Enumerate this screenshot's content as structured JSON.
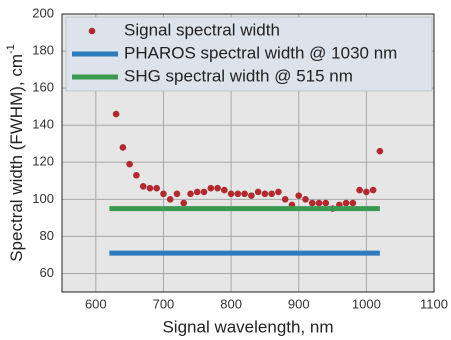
{
  "chart_data": {
    "type": "scatter",
    "x_label": "Signal wavelength, nm",
    "y_label": "Spectral width (FWHM), cm",
    "y_label_sup": "-1",
    "xlim": [
      550,
      1100
    ],
    "xticks": [
      600,
      700,
      800,
      900,
      1000,
      1100
    ],
    "ylim": [
      50,
      200
    ],
    "yticks": [
      60,
      80,
      100,
      120,
      140,
      160,
      180,
      200
    ],
    "grid": true,
    "legend": "upper left",
    "series": [
      {
        "name": "Signal spectral width",
        "type": "scatter",
        "color": "#b22a2e",
        "x": [
          630,
          640,
          650,
          660,
          670,
          680,
          690,
          700,
          710,
          720,
          730,
          740,
          750,
          760,
          770,
          780,
          790,
          800,
          810,
          820,
          830,
          840,
          850,
          860,
          870,
          880,
          890,
          900,
          910,
          920,
          930,
          940,
          950,
          960,
          970,
          980,
          990,
          1000,
          1010,
          1020
        ],
        "values": [
          146,
          128,
          119,
          113,
          107,
          106,
          106,
          103,
          100,
          103,
          98,
          103,
          104,
          104,
          106,
          106,
          105,
          103,
          103,
          103,
          102,
          104,
          103,
          103,
          104,
          100,
          97,
          102,
          100,
          98,
          98,
          98,
          95,
          97,
          98,
          98,
          105,
          104,
          105,
          126
        ]
      },
      {
        "name": "PHAROS spectral width @ 1030 nm",
        "type": "line",
        "color": "#2e7bbd",
        "x": [
          620,
          1020
        ],
        "values": [
          71,
          71
        ]
      },
      {
        "name": "SHG spectral width @ 515 nm",
        "type": "line",
        "color": "#3a9a50",
        "x": [
          620,
          1020
        ],
        "values": [
          95,
          95
        ]
      }
    ]
  }
}
